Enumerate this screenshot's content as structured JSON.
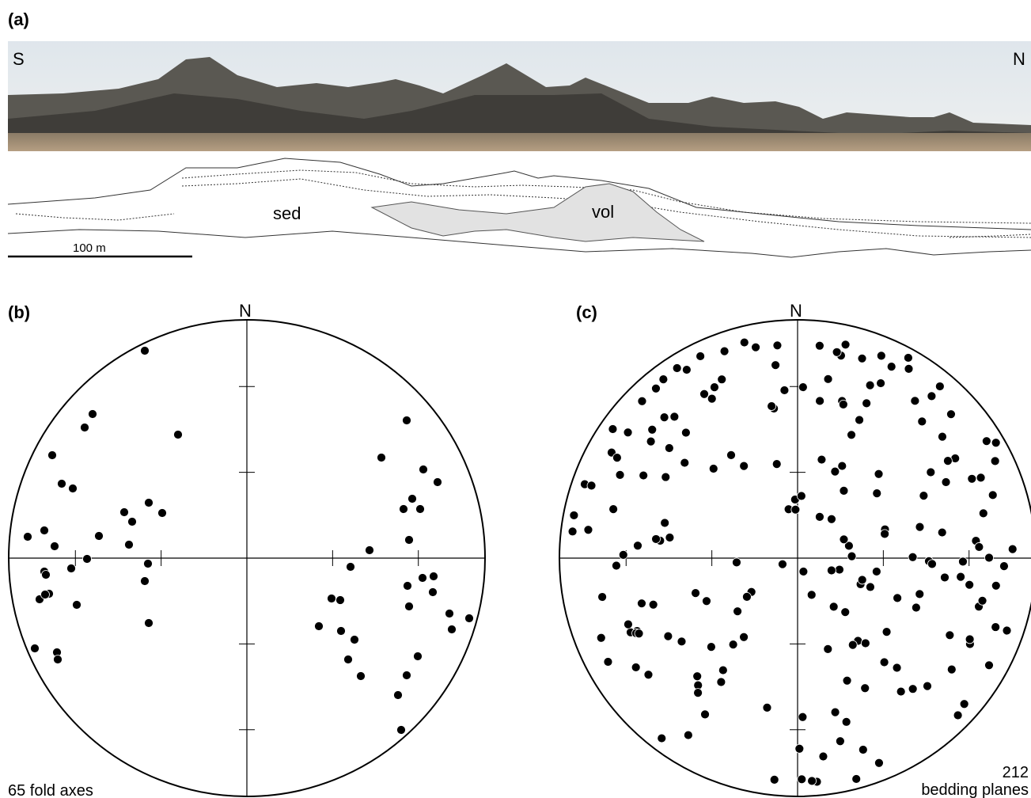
{
  "panel_a": {
    "label": "(a)",
    "south": "S",
    "north": "N",
    "sed": "sed",
    "vol": "vol",
    "scale_bar": "100 m"
  },
  "panel_b": {
    "label": "(b)",
    "north": "N",
    "caption": "65 fold axes"
  },
  "panel_c": {
    "label": "(c)",
    "north": "N",
    "count": 212,
    "caption": "bedding planes"
  }
}
